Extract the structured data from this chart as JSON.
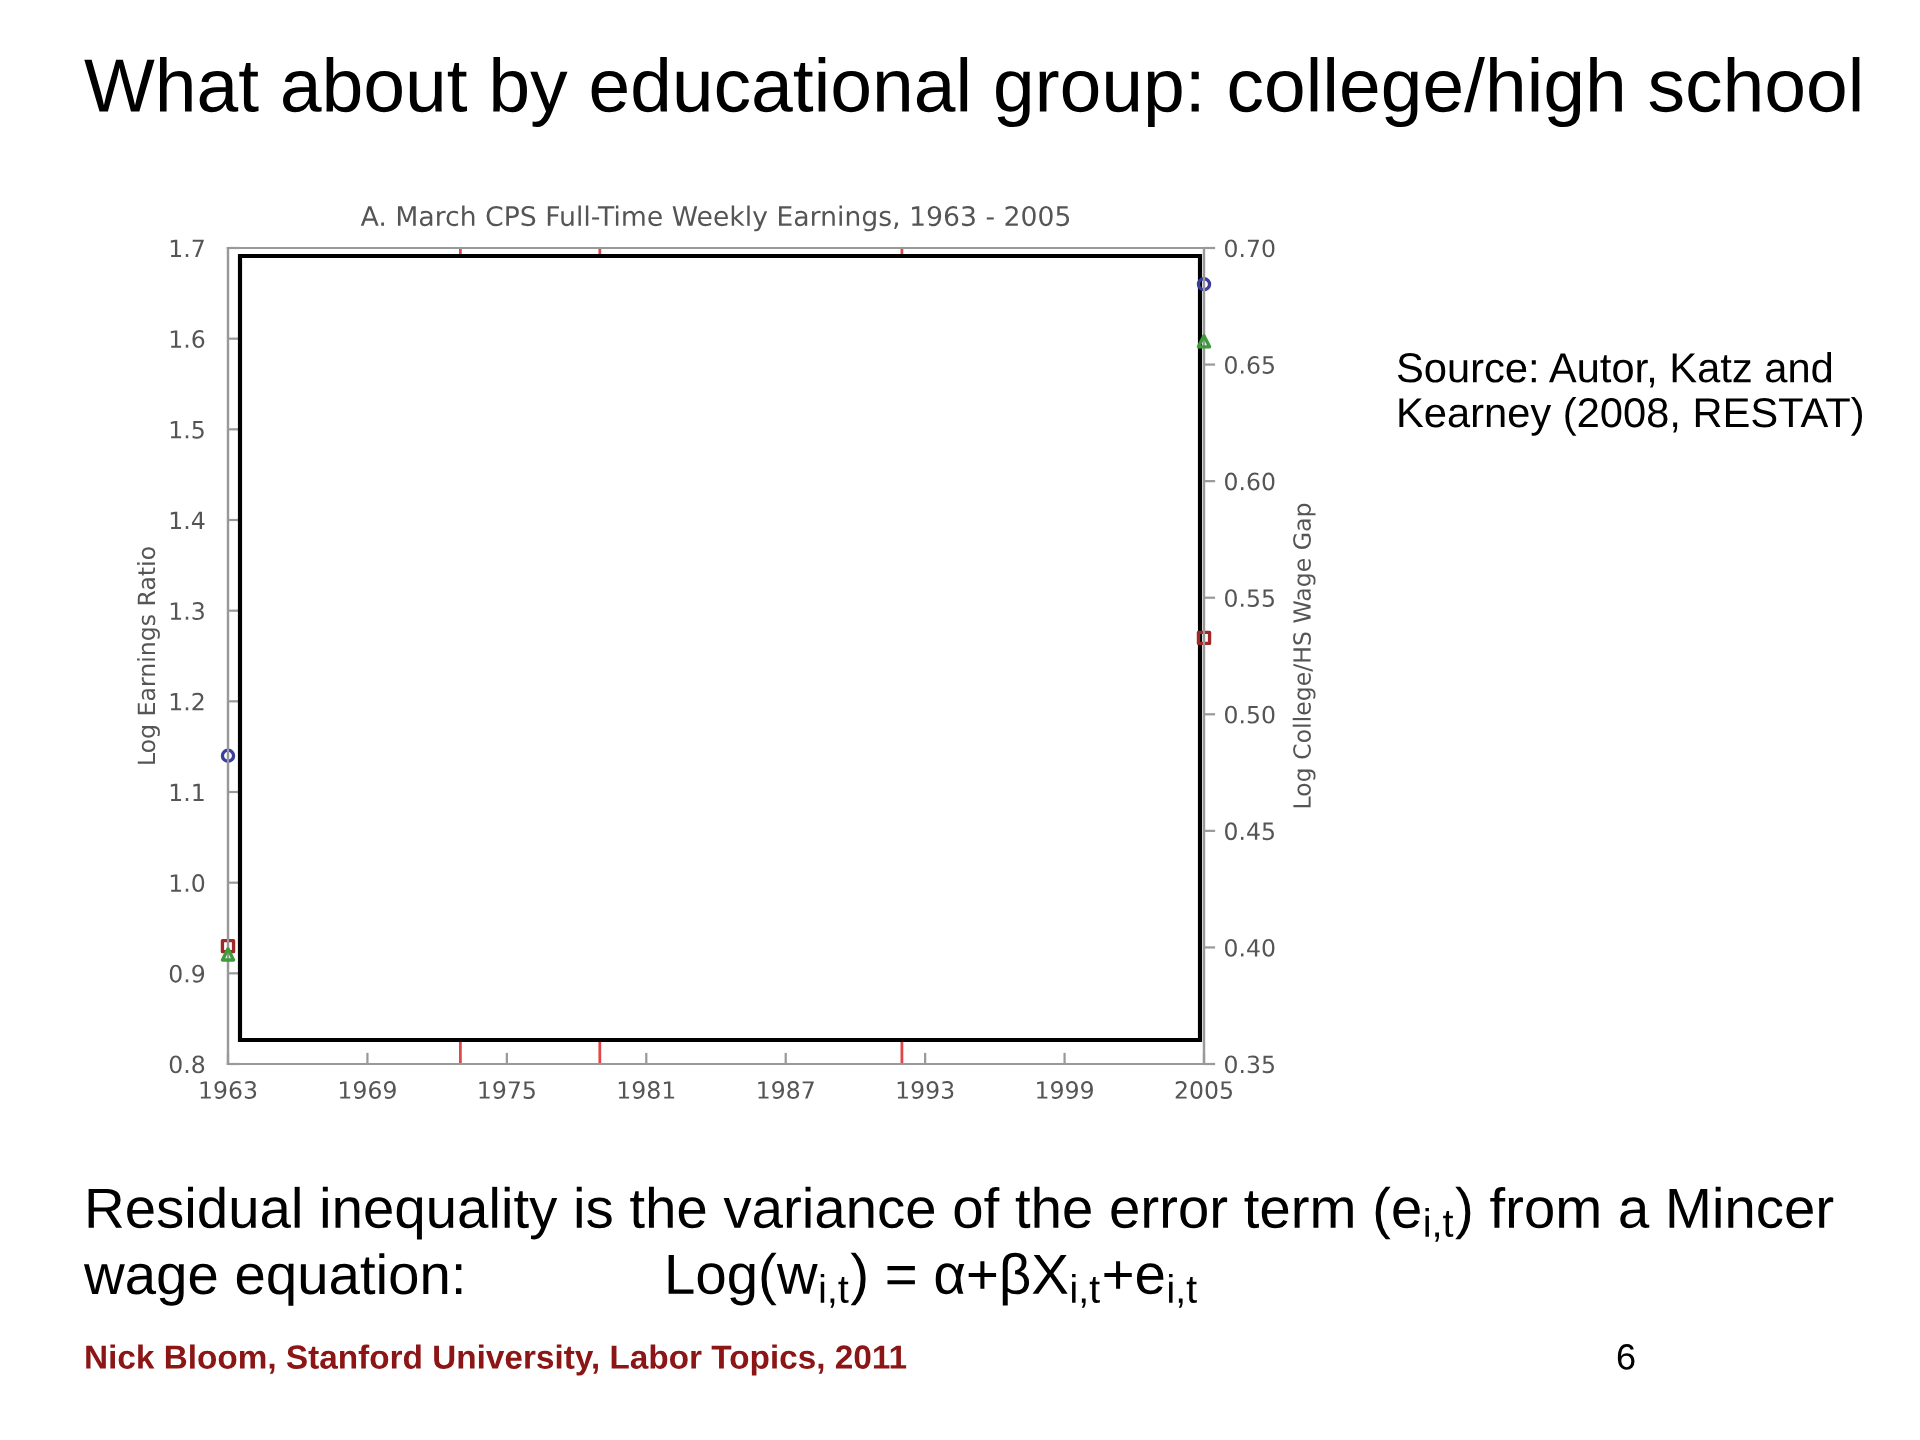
{
  "chart_data": {
    "type": "scatter",
    "title": "What about by educational group: college/high school",
    "subtitle": "A. March CPS Full-Time Weekly Earnings, 1963 - 2005",
    "ylabel": "Log Earnings Ratio",
    "y2label": "Log College/HS Wage Gap",
    "x": [
      1963,
      2005
    ],
    "series": [
      {
        "color": "#3c3c9c",
        "marker": "circle",
        "values": [
          1.14,
          1.66
        ]
      },
      {
        "color": "#a02828",
        "marker": "square",
        "values": [
          0.93,
          1.27
        ]
      },
      {
        "color": "#3c9c3c",
        "marker": "triangle",
        "axis": "y2",
        "values": [
          0.397,
          0.66
        ]
      }
    ],
    "xlim": [
      1963,
      2005
    ],
    "xticks": [
      1963,
      1969,
      1975,
      1981,
      1987,
      1993,
      1999,
      2005
    ],
    "ylim": [
      0.8,
      1.7
    ],
    "yticks": [
      0.8,
      0.9,
      {
        "value": 1.0,
        "label": "1.0"
      },
      1.1,
      1.2,
      1.3,
      1.4,
      1.5,
      1.6,
      1.7
    ],
    "y2lim": [
      0.35,
      0.7
    ],
    "y2ticks": [
      0.35,
      {
        "value": 0.4,
        "label": "0.40"
      },
      0.45,
      {
        "value": 0.5,
        "label": "0.50"
      },
      0.55,
      {
        "value": 0.6,
        "label": "0.60"
      },
      0.65,
      {
        "value": 0.7,
        "label": "0.70"
      }
    ],
    "ref_lines": [
      {
        "axis": "x",
        "value": 1973,
        "color": "#e04848"
      },
      {
        "axis": "x",
        "value": 1979,
        "color": "#e04848"
      },
      {
        "axis": "x",
        "value": 1992,
        "color": "#e04848"
      }
    ],
    "annotations": [
      "Source: Autor, Katz and\nKearney (2008, RESTAT)",
      "Residual inequality is the variance of the error term (e$_{i,t}$) from a Mincer",
      "wage equation:",
      "Log(w$_{i,t}$) = α+βX$_{i,t}$+e$_{i,t}$",
      "Nick Bloom, Stanford University, Labor Topics, 2011",
      "6"
    ]
  }
}
